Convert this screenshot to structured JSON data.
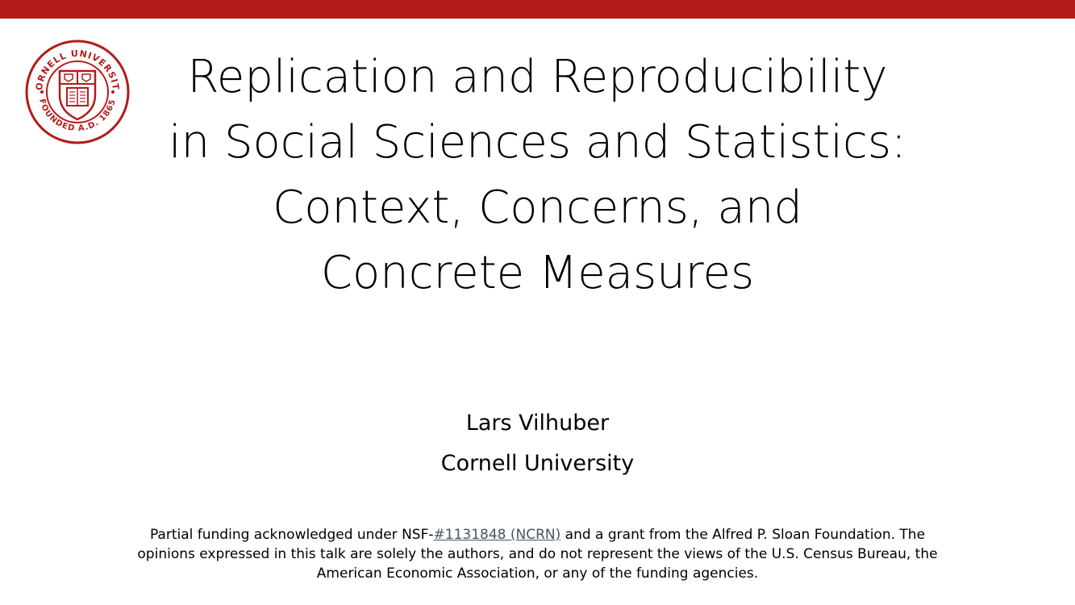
{
  "colors": {
    "accent": "#b31b1b",
    "link": "#44546a"
  },
  "logo": {
    "icon": "cornell-university-seal-icon",
    "text_top": "CORNELL UNIVERSITY",
    "text_bottom": "FOUNDED A.D. 1865"
  },
  "title": {
    "lines": [
      "Replication and Reproducibility",
      "in Social Sciences and Statistics:",
      "Context, Concerns, and",
      "Concrete Measures"
    ]
  },
  "author": {
    "name": "Lars Vilhuber",
    "affiliation": "Cornell University"
  },
  "footnote": {
    "line1_prefix": "Partial funding acknowledged under NSF-",
    "link_text": "#1131848 (NCRN)",
    "line1_suffix": " and a grant from the Alfred P. Sloan Foundation.",
    "line2": "The opinions expressed in this talk are solely the authors, and do not represent the views of the U.S. Census Bureau, the American Economic Association, or any of the funding agencies."
  }
}
